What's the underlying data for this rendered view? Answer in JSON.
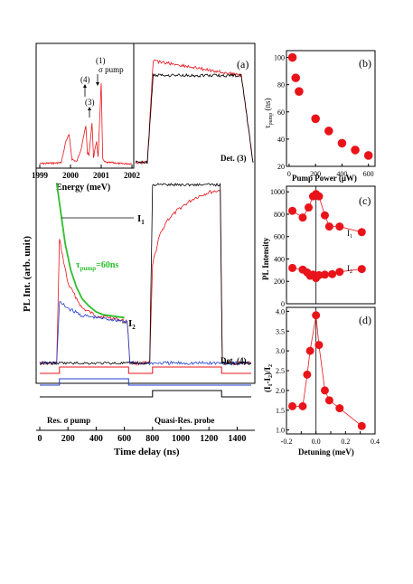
{
  "chart_data": [
    {
      "panel": "(a)",
      "type": "line",
      "xlabel": "Time delay (ns)",
      "ylabel": "PL Int. (arb. unit)",
      "xlim": [
        0,
        1500
      ],
      "xticks": [
        0,
        200,
        400,
        600,
        800,
        1000,
        1200,
        1400
      ],
      "annotations": {
        "I1": "I",
        "I1_sub": "1",
        "I2": "I",
        "I2_sub": "2",
        "tau_main": "τ",
        "tau_sub": "pump",
        "tau_value": "=60ns",
        "det3": "Det. (3)",
        "det4": "Det. (4)",
        "pump_label": "Res. σ pump",
        "probe_label": "Quasi-Res. probe"
      },
      "series": [
        {
          "color": "#e8141a",
          "x": [
            0,
            120,
            140,
            200,
            300,
            400,
            500,
            620,
            640,
            780,
            800,
            850,
            900,
            1000,
            1100,
            1200,
            1280,
            1295,
            1500
          ],
          "y": [
            0.03,
            0.03,
            0.68,
            0.45,
            0.32,
            0.28,
            0.27,
            0.25,
            0.03,
            0.03,
            0.55,
            0.7,
            0.78,
            0.85,
            0.9,
            0.93,
            0.94,
            0.03,
            0.03
          ]
        },
        {
          "color": "#1f3fd0",
          "x": [
            0,
            120,
            140,
            200,
            300,
            400,
            500,
            620,
            640,
            1500
          ],
          "y": [
            0.03,
            0.03,
            0.35,
            0.32,
            0.28,
            0.27,
            0.26,
            0.25,
            0.03,
            0.03
          ]
        },
        {
          "color": "#000000",
          "x": [
            0,
            780,
            800,
            1000,
            1280,
            1295,
            1500
          ],
          "y": [
            0.03,
            0.03,
            0.97,
            0.97,
            0.97,
            0.03,
            0.03
          ]
        },
        {
          "color": "#2fbf2f",
          "x": [
            120,
            150,
            180,
            220,
            260,
            300,
            350,
            400,
            450,
            500,
            550,
            600
          ],
          "y": [
            0.98,
            0.82,
            0.66,
            0.52,
            0.43,
            0.37,
            0.33,
            0.3,
            0.285,
            0.28,
            0.275,
            0.27
          ]
        }
      ],
      "inset_top_right": {
        "series": [
          {
            "color": "#e8141a",
            "x": [
              0,
              1,
              1.5,
              9,
              10
            ],
            "y": [
              0.05,
              0.05,
              0.95,
              0.82,
              0.05
            ]
          },
          {
            "color": "#000000",
            "x": [
              0,
              1,
              1.5,
              9,
              10
            ],
            "y": [
              0.05,
              0.05,
              0.82,
              0.82,
              0.05
            ]
          }
        ]
      },
      "pulse_sequence": [
        {
          "color": "#e8141a",
          "x": [
            0,
            140,
            140,
            630,
            630,
            800,
            800,
            1290,
            1290,
            1500
          ],
          "y": [
            0,
            0,
            1,
            1,
            0,
            0,
            1,
            1,
            0,
            0
          ]
        },
        {
          "color": "#1f3fd0",
          "x": [
            0,
            140,
            140,
            630,
            630,
            1500
          ],
          "y": [
            0,
            0,
            1,
            1,
            0,
            0
          ]
        },
        {
          "color": "#000000",
          "x": [
            0,
            800,
            800,
            1290,
            1290,
            1500
          ],
          "y": [
            0,
            0,
            1,
            1,
            0,
            0
          ]
        }
      ]
    },
    {
      "panel": "(a) inset",
      "type": "line",
      "xlabel": "Energy (meV)",
      "xlim": [
        1999,
        2002
      ],
      "xticks": [
        1999,
        2000,
        2001,
        2002
      ],
      "annotations": {
        "p1": "(1)",
        "sigma_pump": "σ pump",
        "p3": "(3)",
        "p4": "(4)"
      },
      "series": [
        {
          "color": "#e8141a",
          "x": [
            1999.0,
            1999.7,
            1999.85,
            1999.95,
            2000.05,
            2000.2,
            2000.35,
            2000.5,
            2000.55,
            2000.6,
            2000.7,
            2000.75,
            2000.85,
            2000.9,
            2001.0,
            2001.05,
            2001.1,
            2001.2,
            2001.4,
            2001.6,
            2002.0
          ],
          "y": [
            0.03,
            0.04,
            0.28,
            0.35,
            0.08,
            0.05,
            0.2,
            0.45,
            0.15,
            0.12,
            0.48,
            0.1,
            0.28,
            0.1,
            0.92,
            0.08,
            0.05,
            0.04,
            0.04,
            0.03,
            0.03
          ]
        }
      ]
    },
    {
      "panel": "(b)",
      "type": "scatter",
      "xlabel": "Pump Power (μW)",
      "ylabel": "τ",
      "ylabel_sub": "pump",
      "ylabel_unit": " (ns)",
      "xlim": [
        -20,
        650
      ],
      "ylim": [
        20,
        105
      ],
      "xticks": [
        0,
        200,
        400,
        600
      ],
      "yticks": [
        20,
        40,
        60,
        80,
        100
      ],
      "series": [
        {
          "color": "#e8141a",
          "x": [
            25,
            50,
            75,
            200,
            300,
            400,
            500,
            600
          ],
          "y": [
            100,
            85,
            75,
            55,
            46,
            37,
            32,
            28
          ]
        }
      ]
    },
    {
      "panel": "(c)",
      "type": "scatter",
      "ylabel": "PL Intensity",
      "xlim": [
        -0.2,
        0.4
      ],
      "ylim": [
        0,
        1050
      ],
      "yticks": [
        0,
        200,
        400,
        600,
        800,
        1000
      ],
      "annotations": {
        "I1": "I",
        "I1_sub": "1",
        "I2": "I",
        "I2_sub": "2"
      },
      "series": [
        {
          "name": "I1",
          "color": "#e8141a",
          "x": [
            -0.16,
            -0.09,
            -0.05,
            -0.02,
            0.0,
            0.02,
            0.06,
            0.09,
            0.16,
            0.31
          ],
          "y": [
            830,
            770,
            860,
            960,
            980,
            960,
            790,
            690,
            690,
            640
          ]
        },
        {
          "name": "I2",
          "color": "#e8141a",
          "x": [
            -0.16,
            -0.09,
            -0.06,
            -0.04,
            -0.02,
            0.0,
            0.02,
            0.06,
            0.11,
            0.16,
            0.31
          ],
          "y": [
            320,
            305,
            280,
            250,
            260,
            230,
            255,
            260,
            265,
            285,
            310
          ]
        }
      ]
    },
    {
      "panel": "(d)",
      "type": "scatter",
      "xlabel": "Detuning (meV)",
      "ylabel": "(I",
      "ylabel_parts": [
        "(I",
        "1",
        "-I",
        "2",
        ")/I",
        "2"
      ],
      "xlim": [
        -0.2,
        0.4
      ],
      "ylim": [
        0.9,
        4.1
      ],
      "xticks": [
        -0.2,
        -0.1,
        0.0,
        0.1,
        0.2,
        0.3,
        0.4
      ],
      "xtick_labels": [
        "-0.2",
        "0.0",
        "0.2",
        "0.4"
      ],
      "yticks": [
        1.0,
        1.5,
        2.0,
        2.5,
        3.0,
        3.5,
        4.0
      ],
      "series": [
        {
          "color": "#e8141a",
          "x": [
            -0.16,
            -0.09,
            -0.06,
            -0.04,
            0.0,
            0.02,
            0.06,
            0.09,
            0.16,
            0.31
          ],
          "y": [
            1.6,
            1.6,
            2.4,
            3.0,
            3.9,
            3.15,
            2.0,
            1.75,
            1.55,
            1.1
          ]
        }
      ]
    }
  ]
}
